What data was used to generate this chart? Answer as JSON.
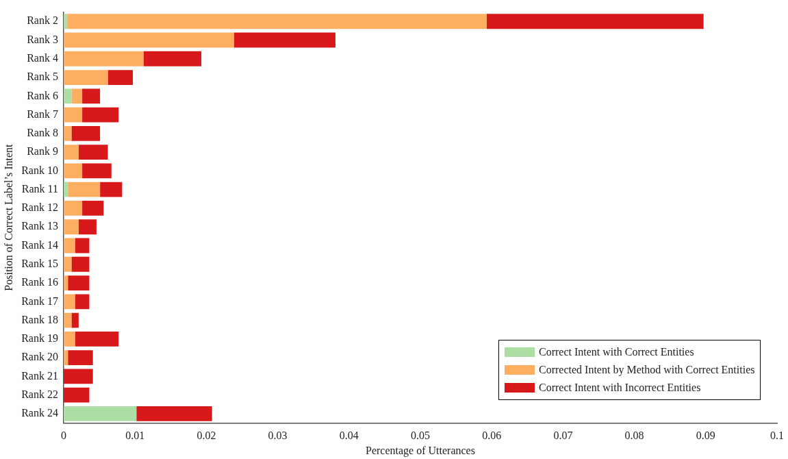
{
  "chart_data": {
    "type": "bar",
    "orientation": "horizontal",
    "stacked": true,
    "xlabel": "Percentage of Utterances",
    "ylabel": "Position of Correct Label’s Intent",
    "categories": [
      "Rank 2",
      "Rank 3",
      "Rank 4",
      "Rank 5",
      "Rank 6",
      "Rank 7",
      "Rank 8",
      "Rank 9",
      "Rank 10",
      "Rank 11",
      "Rank 12",
      "Rank 13",
      "Rank 14",
      "Rank 15",
      "Rank 16",
      "Rank 17",
      "Rank 18",
      "Rank 19",
      "Rank 20",
      "Rank 21",
      "Rank 22",
      "Rank 24"
    ],
    "series": [
      {
        "name": "Correct Intent with Correct Entities",
        "color": "#addfa4",
        "values": [
          0.0005,
          0,
          0,
          0,
          0.0011,
          0,
          0,
          0,
          0,
          0.0006,
          0,
          0,
          0,
          0,
          0,
          0,
          0,
          0,
          0,
          0,
          0,
          0.0102
        ]
      },
      {
        "name": "Corrected Intent by Method with Correct Entities",
        "color": "#fdae61",
        "values": [
          0.0588,
          0.0239,
          0.0112,
          0.0062,
          0.0015,
          0.0026,
          0.0011,
          0.0021,
          0.0026,
          0.0045,
          0.0026,
          0.0021,
          0.0016,
          0.0011,
          0.0006,
          0.0016,
          0.0011,
          0.0016,
          0.0006,
          0,
          0,
          0
        ]
      },
      {
        "name": "Correct Intent with Incorrect Entities",
        "color": "#d7191c",
        "values": [
          0.0304,
          0.0142,
          0.0081,
          0.0035,
          0.0025,
          0.0051,
          0.004,
          0.0041,
          0.0041,
          0.0031,
          0.003,
          0.0025,
          0.002,
          0.0025,
          0.003,
          0.002,
          0.001,
          0.0061,
          0.0035,
          0.0041,
          0.0036,
          0.0106
        ]
      }
    ],
    "xlim": [
      0,
      0.1
    ],
    "xticks": [
      0,
      0.01,
      0.02,
      0.03,
      0.04,
      0.05,
      0.06,
      0.07,
      0.08,
      0.09,
      0.1
    ],
    "grid": false,
    "legend": "bottom right"
  }
}
